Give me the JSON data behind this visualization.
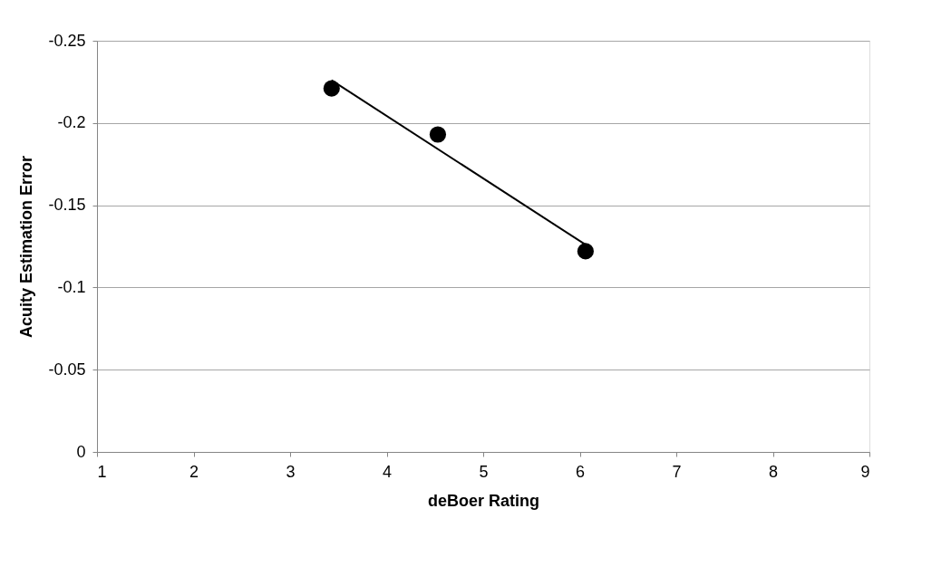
{
  "chart_data": {
    "type": "scatter",
    "xlabel": "deBoer Rating",
    "ylabel": "Acuity Estimation Error",
    "xlim": [
      1,
      9
    ],
    "xticks": [
      1,
      2,
      3,
      4,
      5,
      6,
      7,
      8,
      9
    ],
    "ylim": [
      0,
      -0.25
    ],
    "yticks": [
      0,
      -0.05,
      -0.1,
      -0.15,
      -0.2,
      -0.25
    ],
    "grid": "y",
    "series": [
      {
        "marker": "circle",
        "color": "#000000",
        "x": [
          3.43,
          4.53,
          6.06
        ],
        "values": [
          -0.221,
          -0.193,
          -0.122
        ]
      },
      {
        "type": "line",
        "color": "#000000",
        "line_style": "solid",
        "marker": "none",
        "x": [
          3.43,
          6.06
        ],
        "values": [
          -0.226,
          -0.126
        ]
      }
    ]
  }
}
